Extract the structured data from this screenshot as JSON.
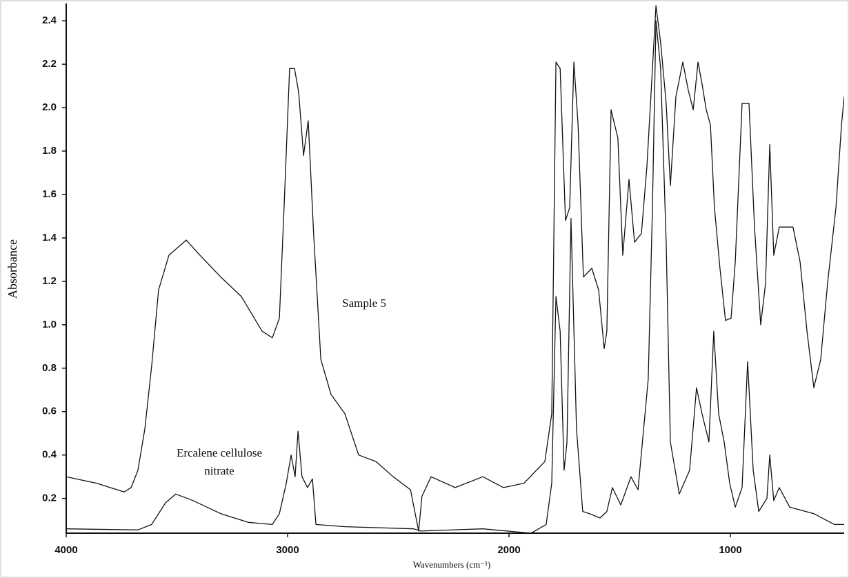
{
  "chart_data": {
    "type": "line",
    "x_label": "Wavenumbers (cm⁻¹)",
    "y_label": "Absorbance",
    "xlim": [
      4000,
      486
    ],
    "ylim": [
      0.04,
      2.48
    ],
    "xticks": [
      4000,
      3000,
      2000,
      1000
    ],
    "yticks": [
      0.2,
      0.4,
      0.6,
      0.8,
      {
        "value": 1,
        "label": "1.0"
      },
      1.2,
      1.4,
      1.6,
      1.8,
      {
        "value": 2,
        "label": "2.0"
      },
      2.2,
      2.4
    ],
    "series": [
      {
        "name": "Sample 5",
        "color": "#111111",
        "x": [
          4000,
          3863,
          3738,
          3707,
          3676,
          3645,
          3614,
          3583,
          3536,
          3458,
          3396,
          3302,
          3209,
          3115,
          3069,
          3037,
          3016,
          2991,
          2969,
          2950,
          2928,
          2907,
          2882,
          2850,
          2804,
          2741,
          2679,
          2601,
          2523,
          2445,
          2408,
          2393,
          2352,
          2243,
          2118,
          2025,
          1932,
          1838,
          1807,
          1788,
          1769,
          1745,
          1726,
          1707,
          1688,
          1664,
          1626,
          1595,
          1570,
          1558,
          1539,
          1508,
          1486,
          1458,
          1433,
          1402,
          1377,
          1352,
          1336,
          1315,
          1290,
          1271,
          1246,
          1215,
          1190,
          1168,
          1146,
          1128,
          1109,
          1090,
          1072,
          1047,
          1022,
          997,
          978,
          947,
          916,
          891,
          863,
          841,
          822,
          804,
          779,
          748,
          717,
          685,
          654,
          623,
          592,
          561,
          523,
          498,
          486
        ],
        "values": [
          0.3,
          0.27,
          0.23,
          0.25,
          0.33,
          0.52,
          0.81,
          1.16,
          1.32,
          1.39,
          1.32,
          1.22,
          1.13,
          0.97,
          0.94,
          1.03,
          1.54,
          2.18,
          2.18,
          2.07,
          1.78,
          1.94,
          1.41,
          0.84,
          0.68,
          0.59,
          0.4,
          0.37,
          0.3,
          0.24,
          0.05,
          0.21,
          0.3,
          0.25,
          0.3,
          0.25,
          0.27,
          0.37,
          0.59,
          2.21,
          2.18,
          1.48,
          1.54,
          2.21,
          1.92,
          1.22,
          1.26,
          1.16,
          0.89,
          0.97,
          1.99,
          1.86,
          1.32,
          1.67,
          1.38,
          1.42,
          1.73,
          2.18,
          2.47,
          2.3,
          2.02,
          1.64,
          2.05,
          2.21,
          2.08,
          1.99,
          2.21,
          2.11,
          1.99,
          1.92,
          1.54,
          1.26,
          1.02,
          1.03,
          1.29,
          2.02,
          2.02,
          1.45,
          1.0,
          1.19,
          1.83,
          1.32,
          1.45,
          1.45,
          1.45,
          1.29,
          0.97,
          0.71,
          0.84,
          1.19,
          1.54,
          1.92,
          2.05
        ]
      },
      {
        "name": "Ercalene cellulose nitrate",
        "color": "#111111",
        "x": [
          4000,
          3676,
          3614,
          3551,
          3505,
          3427,
          3302,
          3178,
          3069,
          3037,
          3006,
          2984,
          2966,
          2953,
          2935,
          2910,
          2888,
          2872,
          2741,
          2430,
          2399,
          2118,
          1900,
          1832,
          1807,
          1788,
          1769,
          1751,
          1738,
          1720,
          1695,
          1667,
          1636,
          1589,
          1558,
          1533,
          1495,
          1449,
          1417,
          1371,
          1352,
          1336,
          1315,
          1290,
          1271,
          1231,
          1184,
          1153,
          1128,
          1097,
          1075,
          1053,
          1028,
          1003,
          978,
          947,
          922,
          897,
          872,
          835,
          822,
          804,
          779,
          732,
          623,
          530,
          486
        ],
        "values": [
          0.06,
          0.055,
          0.08,
          0.18,
          0.22,
          0.19,
          0.13,
          0.09,
          0.08,
          0.13,
          0.27,
          0.4,
          0.3,
          0.51,
          0.3,
          0.25,
          0.29,
          0.08,
          0.07,
          0.06,
          0.05,
          0.06,
          0.04,
          0.08,
          0.27,
          1.13,
          0.97,
          0.33,
          0.46,
          1.49,
          0.52,
          0.14,
          0.13,
          0.11,
          0.14,
          0.25,
          0.17,
          0.3,
          0.24,
          0.75,
          1.54,
          2.4,
          2.18,
          1.38,
          0.46,
          0.22,
          0.33,
          0.71,
          0.59,
          0.46,
          0.97,
          0.59,
          0.46,
          0.27,
          0.16,
          0.25,
          0.83,
          0.33,
          0.14,
          0.2,
          0.4,
          0.19,
          0.25,
          0.16,
          0.13,
          0.08,
          0.08
        ]
      }
    ]
  }
}
